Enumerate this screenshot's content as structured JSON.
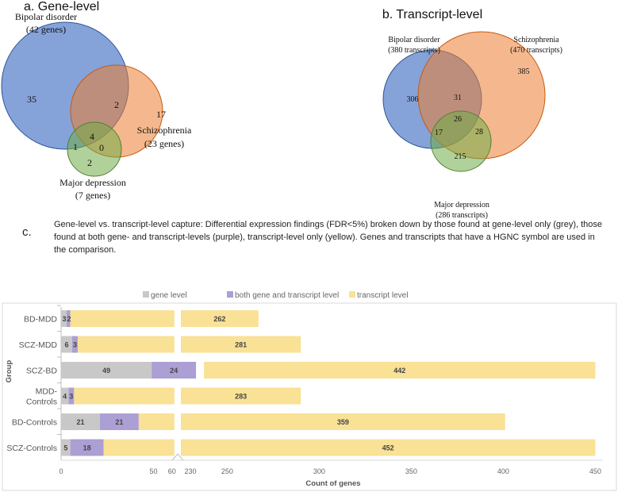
{
  "venn_a": {
    "title": "a.   Gene-level",
    "sets": [
      {
        "name": "Bipolar disorder",
        "count": "(42 genes)",
        "color": "#4472c4"
      },
      {
        "name": "Schizophrenia",
        "count": "(23 genes)",
        "color": "#ed7d31"
      },
      {
        "name": "Major depression",
        "count": "(7 genes)",
        "color": "#70ad47"
      }
    ],
    "regions": {
      "bd_only": "35",
      "bd_scz": "2",
      "scz_only": "17",
      "bd_mdd": "1",
      "all": "4",
      "scz_mdd": "0",
      "mdd_only": "2"
    }
  },
  "venn_b": {
    "title": "b. Transcript-level",
    "sets": [
      {
        "name": "Bipolar disorder",
        "count": "(380 transcripts)"
      },
      {
        "name": "Schizophrenia",
        "count": "(470 transcripts)"
      },
      {
        "name": "Major depression",
        "count": "(286 transcripts)"
      }
    ],
    "regions": {
      "bd_only": "306",
      "bd_scz": "31",
      "scz_only": "385",
      "bd_mdd": "17",
      "all": "26",
      "scz_mdd": "28",
      "mdd_only": "215"
    }
  },
  "caption": {
    "label": "c.",
    "text": "Gene-level vs. transcript-level capture: Differential expression findings (FDR<5%) broken down by those found at gene-level only (grey), those found at both gene- and transcript-levels (purple), transcript-level only (yellow). Genes and transcripts that have a HGNC symbol are used in the comparison."
  },
  "chart_data": {
    "type": "bar",
    "orientation": "horizontal",
    "stacked": true,
    "categories": [
      "BD-MDD",
      "SCZ-MDD",
      "SCZ-BD",
      "MDD-Controls",
      "BD-Controls",
      "SCZ-Controls"
    ],
    "category_labels": [
      [
        "BD-MDD"
      ],
      [
        "SCZ-MDD"
      ],
      [
        "SCZ-BD"
      ],
      [
        "MDD-",
        "Controls"
      ],
      [
        "BD-Controls"
      ],
      [
        "SCZ-Controls"
      ]
    ],
    "series": [
      {
        "name": "gene level",
        "color": "#c8c8c8",
        "values": [
          3,
          6,
          49,
          4,
          21,
          5
        ]
      },
      {
        "name": "both gene and transcript level",
        "color": "#ab9fd4",
        "values": [
          2,
          3,
          24,
          3,
          21,
          18
        ]
      },
      {
        "name": "transcript level",
        "color": "#f9e196",
        "values": [
          262,
          281,
          442,
          283,
          359,
          452
        ]
      }
    ],
    "xlabel": "Count of genes",
    "ylabel": "Group",
    "xticks": [
      "0",
      "50",
      "60",
      "230",
      "250",
      "300",
      "350",
      "400",
      "450"
    ],
    "axis_break": [
      60,
      230
    ],
    "xlim": [
      0,
      450
    ],
    "legend": "top"
  }
}
